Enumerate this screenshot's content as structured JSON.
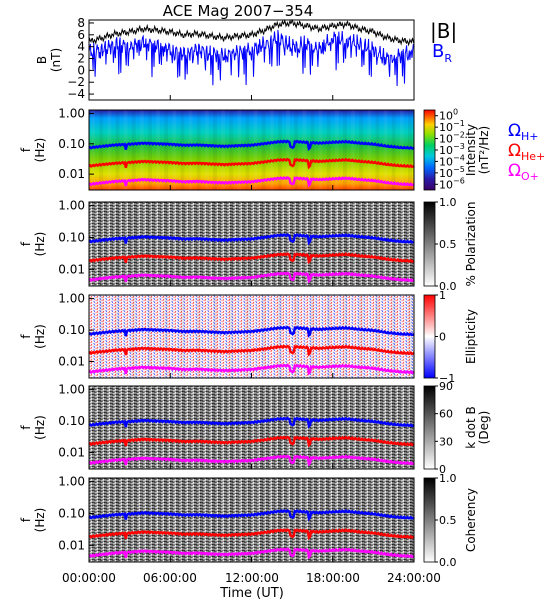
{
  "title": "ACE Mag 2007−354",
  "xlabel": "Time (UT)",
  "x_ticks": [
    "00:00:00",
    "06:00:00",
    "12:00:00",
    "18:00:00",
    "24:00:00"
  ],
  "freq_ticks": [
    "1.00",
    "0.10",
    "0.01"
  ],
  "freq_ylabel": [
    "f",
    "(Hz)"
  ],
  "legend_top": {
    "B": "|B|",
    "BR": "B",
    "BR_sub": "R",
    "B_color": "#000000",
    "BR_color": "#0000ff"
  },
  "legend_gyro": {
    "H_sub": "H+",
    "He_sub": "He+",
    "O_sub": "O+",
    "H_color": "#0000ff",
    "He_color": "#ff0000",
    "O_color": "#ff00ff"
  },
  "chart_data": [
    {
      "type": "line",
      "panel": "B",
      "ylabel": [
        "B",
        "(nT)"
      ],
      "yticks": [
        "8",
        "6",
        "4",
        "2",
        "0",
        "−2",
        "−4"
      ],
      "ylim": [
        -5,
        8.5
      ],
      "xlim_hours": [
        0,
        24
      ],
      "series": [
        {
          "name": "|B|",
          "color": "#000000",
          "x": [
            0,
            1,
            2,
            3,
            4,
            5,
            6,
            7,
            8,
            9,
            10,
            11,
            12,
            13,
            14,
            15,
            16,
            17,
            18,
            19,
            20,
            21,
            22,
            23,
            24
          ],
          "y": [
            4.8,
            5.5,
            6.2,
            6.5,
            7.0,
            6.8,
            6.5,
            6.0,
            6.2,
            5.8,
            5.5,
            5.8,
            6.0,
            6.8,
            7.8,
            8.0,
            7.5,
            7.0,
            7.5,
            7.8,
            7.0,
            6.5,
            5.5,
            5.0,
            4.8
          ]
        },
        {
          "name": "B",
          "color": "#0000ff",
          "x": [
            0,
            1,
            2,
            3,
            4,
            5,
            6,
            7,
            8,
            9,
            10,
            11,
            12,
            13,
            14,
            15,
            16,
            17,
            18,
            19,
            20,
            21,
            22,
            23,
            24
          ],
          "y": [
            3.2,
            3.5,
            4.5,
            4.0,
            4.8,
            4.2,
            3.5,
            2.8,
            3.5,
            3.0,
            2.5,
            3.0,
            3.5,
            4.5,
            5.5,
            4.0,
            4.5,
            3.5,
            5.5,
            5.0,
            4.5,
            3.5,
            2.0,
            2.5,
            3.5
          ]
        }
      ]
    },
    {
      "type": "heatmap",
      "panel": "Intensity",
      "colorbar_label": [
        "Intensity",
        "(nT²/Hz)"
      ],
      "colorbar_ticks": [
        {
          "base": "10",
          "exp": "0"
        },
        {
          "base": "10",
          "exp": "−1"
        },
        {
          "base": "10",
          "exp": "−2"
        },
        {
          "base": "10",
          "exp": "−3"
        },
        {
          "base": "10",
          "exp": "−4"
        },
        {
          "base": "10",
          "exp": "−5"
        },
        {
          "base": "10",
          "exp": "−6"
        }
      ],
      "colorbar_range": [
        -6.5,
        0.5
      ],
      "ylim_hz": [
        0.003,
        1.3
      ],
      "xlim_hours": [
        0,
        24
      ],
      "log_y": true
    },
    {
      "type": "heatmap",
      "panel": "% Polarization",
      "colorbar_label": [
        "% Polarization"
      ],
      "colorbar_ticks": [
        "1.0",
        "0.5",
        "0.0"
      ],
      "colorbar_range": [
        0,
        1
      ],
      "colormap": "gray",
      "ylim_hz": [
        0.003,
        1.3
      ],
      "log_y": true
    },
    {
      "type": "heatmap",
      "panel": "Ellipticity",
      "colorbar_label": [
        "Ellipticity"
      ],
      "colorbar_ticks": [
        "1",
        "0",
        "−1"
      ],
      "colorbar_range": [
        -1,
        1
      ],
      "colormap": "blue-white-red",
      "ylim_hz": [
        0.003,
        1.3
      ],
      "log_y": true
    },
    {
      "type": "heatmap",
      "panel": "k dot B",
      "colorbar_label": [
        "k dot B",
        "(Deg)"
      ],
      "colorbar_ticks": [
        "90",
        "60",
        "30",
        "0"
      ],
      "colorbar_range": [
        0,
        90
      ],
      "colormap": "gray",
      "ylim_hz": [
        0.003,
        1.3
      ],
      "log_y": true
    },
    {
      "type": "heatmap",
      "panel": "Coherency",
      "colorbar_label": [
        "Coherency"
      ],
      "colorbar_ticks": [
        "1.0",
        "0.5",
        "0.0"
      ],
      "colorbar_range": [
        0,
        1
      ],
      "colormap": "gray",
      "ylim_hz": [
        0.003,
        1.3
      ],
      "log_y": true
    }
  ],
  "gyrofrequencies": {
    "x_hours": [
      0,
      1,
      2,
      3,
      4,
      5,
      6,
      7,
      8,
      9,
      10,
      11,
      12,
      13,
      14,
      15,
      16,
      17,
      18,
      19,
      20,
      21,
      22,
      23,
      24
    ],
    "H_plus_hz": [
      0.074,
      0.083,
      0.092,
      0.097,
      0.105,
      0.101,
      0.097,
      0.09,
      0.092,
      0.087,
      0.083,
      0.087,
      0.09,
      0.102,
      0.117,
      0.12,
      0.112,
      0.105,
      0.112,
      0.117,
      0.105,
      0.097,
      0.083,
      0.075,
      0.072
    ],
    "He_plus_hz": [
      0.0185,
      0.0208,
      0.023,
      0.0243,
      0.0263,
      0.0253,
      0.0243,
      0.0225,
      0.023,
      0.0218,
      0.0208,
      0.0218,
      0.0225,
      0.0255,
      0.0293,
      0.03,
      0.028,
      0.0263,
      0.028,
      0.0293,
      0.0263,
      0.0243,
      0.0208,
      0.0188,
      0.018
    ],
    "O_plus_hz": [
      0.0046,
      0.0052,
      0.0058,
      0.0061,
      0.0066,
      0.0063,
      0.0061,
      0.0056,
      0.0058,
      0.0054,
      0.0052,
      0.0054,
      0.0056,
      0.0064,
      0.0073,
      0.0075,
      0.007,
      0.0066,
      0.007,
      0.0073,
      0.0066,
      0.0061,
      0.0052,
      0.0047,
      0.0045
    ]
  }
}
